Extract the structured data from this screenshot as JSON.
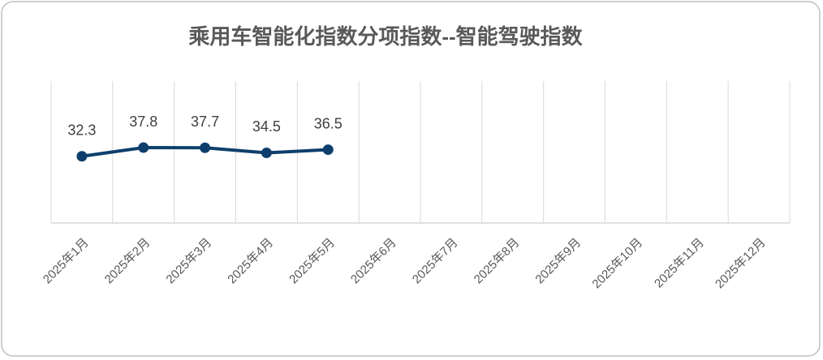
{
  "chart_data": {
    "type": "line",
    "title": "乘用车智能化指数分项指数--智能驾驶指数",
    "categories": [
      "2025年1月",
      "2025年2月",
      "2025年3月",
      "2025年4月",
      "2025年5月",
      "2025年6月",
      "2025年7月",
      "2025年8月",
      "2025年9月",
      "2025年10月",
      "2025年11月",
      "2025年12月"
    ],
    "values": [
      32.3,
      37.8,
      37.7,
      34.5,
      36.5,
      null,
      null,
      null,
      null,
      null,
      null,
      null
    ],
    "color": "#0e3f6c",
    "ylim": [
      -10,
      80
    ]
  }
}
